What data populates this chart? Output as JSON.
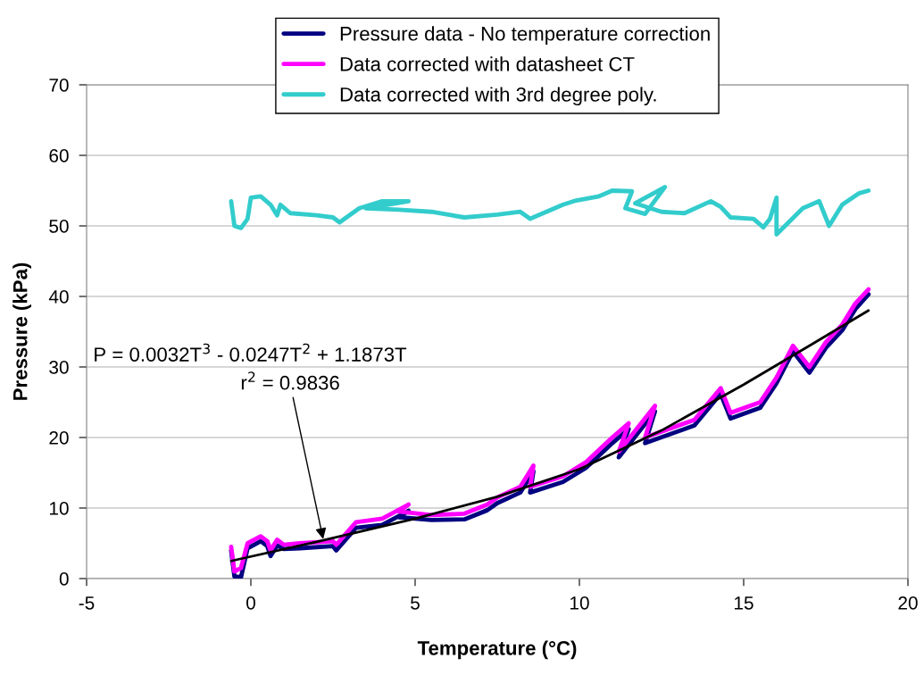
{
  "chart_data": {
    "type": "line",
    "xlabel": "Temperature (°C)",
    "ylabel": "Pressure (kPa)",
    "xlim": [
      -5,
      20
    ],
    "xticks": [
      -5,
      0,
      5,
      10,
      15,
      20
    ],
    "ylim": [
      0,
      70
    ],
    "yticks": [
      0,
      10,
      20,
      30,
      40,
      50,
      60,
      70
    ],
    "grid": "y",
    "legend": "top",
    "marker": "none",
    "line_style": "solid",
    "series": [
      {
        "name": "Pressure data - No temperature correction",
        "color": "#000080",
        "x": [
          -0.6,
          -0.5,
          -0.3,
          -0.1,
          0.3,
          0.5,
          0.6,
          0.8,
          1.0,
          1.5,
          2.5,
          2.6,
          3.2,
          4.0,
          4.8,
          4.5,
          5.5,
          6.5,
          7.2,
          7.5,
          8.2,
          8.6,
          8.5,
          9.5,
          10.2,
          11.0,
          11.5,
          11.2,
          12.3,
          12.0,
          13.5,
          14.3,
          14.6,
          15.5,
          16.0,
          16.5,
          17.0,
          17.5,
          18.0,
          18.4,
          18.8
        ],
        "values": [
          4,
          0.3,
          0.2,
          4.3,
          5.3,
          4.6,
          3.2,
          4.7,
          4.2,
          4.3,
          4.6,
          4.0,
          7.2,
          7.6,
          9.6,
          8.7,
          8.3,
          8.4,
          9.7,
          10.7,
          12.2,
          15.2,
          12.2,
          13.7,
          15.7,
          19.2,
          21.2,
          17.2,
          23.7,
          19.2,
          21.7,
          26.2,
          22.7,
          24.2,
          27.7,
          32.2,
          29.2,
          32.7,
          35.2,
          38.2,
          40.3
        ]
      },
      {
        "name": "Data corrected with datasheet CT",
        "color": "#ff00ff",
        "x": [
          -0.6,
          -0.5,
          -0.3,
          -0.1,
          0.3,
          0.5,
          0.6,
          0.8,
          1.0,
          1.5,
          2.5,
          2.6,
          3.2,
          4.0,
          4.8,
          4.5,
          5.5,
          6.5,
          7.2,
          7.5,
          8.2,
          8.6,
          8.5,
          9.5,
          10.2,
          11.0,
          11.5,
          11.2,
          12.3,
          12.0,
          13.5,
          14.3,
          14.6,
          15.5,
          16.0,
          16.5,
          17.0,
          17.5,
          18.0,
          18.4,
          18.8
        ],
        "values": [
          4.5,
          1,
          1.5,
          5,
          6,
          5.3,
          4,
          5.5,
          4.8,
          5,
          5.3,
          4.8,
          8,
          8.5,
          10.5,
          9.5,
          9,
          9.2,
          10.5,
          11.5,
          13,
          16,
          13,
          14.5,
          16.5,
          20,
          22,
          18,
          24.5,
          20,
          22.5,
          27,
          23.5,
          25,
          28.5,
          33,
          30,
          33.5,
          36,
          39,
          41
        ]
      },
      {
        "name": "Data corrected with 3rd degree poly.",
        "color": "#33cccc",
        "x": [
          -0.6,
          -0.5,
          -0.3,
          -0.1,
          0,
          0.3,
          0.6,
          0.8,
          0.9,
          1.2,
          2,
          2.5,
          2.7,
          3.3,
          4,
          4.8,
          3.5,
          4.5,
          5.5,
          6.5,
          7.5,
          8.2,
          8.5,
          9.5,
          9.9,
          10.6,
          11,
          11.6,
          11.4,
          12,
          12.6,
          11.7,
          12.5,
          13.2,
          14,
          14.3,
          14.6,
          15.3,
          15.6,
          15.8,
          16,
          16,
          16.8,
          17.3,
          17.6,
          18,
          18.5,
          18.8
        ],
        "values": [
          53.5,
          50,
          49.7,
          51,
          54,
          54.2,
          53,
          51.5,
          53,
          51.8,
          51.5,
          51.2,
          50.5,
          52.5,
          53.5,
          53.5,
          52.5,
          52.3,
          52,
          51.2,
          51.6,
          52,
          51,
          53,
          53.6,
          54.2,
          55,
          54.9,
          52.5,
          51.7,
          55.5,
          53.2,
          52,
          51.8,
          53.5,
          52.7,
          51.2,
          51,
          49.8,
          51,
          54,
          48.8,
          52.5,
          53.5,
          50,
          53,
          54.6,
          55
        ]
      },
      {
        "color": "#000000",
        "x": [
          -0.6,
          2,
          5,
          7.5,
          10,
          12.5,
          15,
          17,
          18.8
        ],
        "values": [
          2.5,
          5.2,
          8.5,
          11.6,
          15.5,
          21,
          27.5,
          33,
          38
        ]
      }
    ],
    "annotations": [
      "P = 0.0032T$^{3}$ - 0.0247T$^{2}$ + 1.1873T",
      {
        "text": "r$^{2}$ = 0.9836",
        "x": 2.2,
        "y": 5.6
      }
    ]
  }
}
